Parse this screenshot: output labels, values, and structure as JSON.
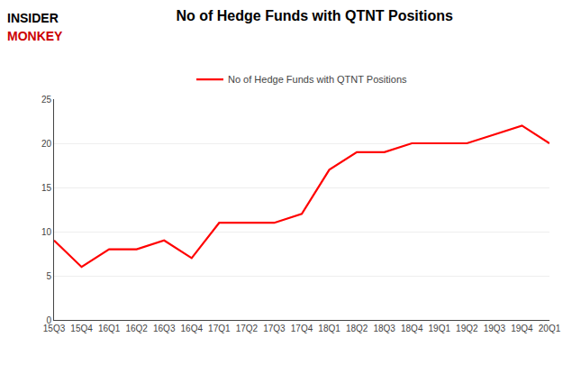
{
  "chart_data": {
    "type": "line",
    "title": "No of Hedge Funds with QTNT Positions",
    "categories": [
      "15Q3",
      "15Q4",
      "16Q1",
      "16Q2",
      "16Q3",
      "16Q4",
      "17Q1",
      "17Q2",
      "17Q3",
      "17Q4",
      "18Q1",
      "18Q2",
      "18Q3",
      "18Q4",
      "19Q1",
      "19Q2",
      "19Q3",
      "19Q4",
      "20Q1"
    ],
    "series": [
      {
        "name": "No of Hedge Funds with QTNT Positions",
        "color": "#FF0000",
        "values": [
          9,
          6,
          8,
          8,
          9,
          7,
          11,
          11,
          11,
          12,
          17,
          19,
          19,
          20,
          20,
          20,
          21,
          22,
          20
        ]
      }
    ],
    "ylim": [
      0,
      25
    ],
    "yticks": [
      0,
      5,
      10,
      15,
      20,
      25
    ],
    "grid": true,
    "legend": "top",
    "annotations": [
      {
        "text": "INSIDER",
        "color": "#000000"
      },
      {
        "text": "MONKEY",
        "color": "#CC0000"
      }
    ]
  }
}
